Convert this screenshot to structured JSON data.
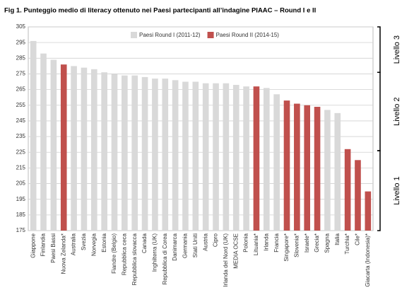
{
  "chart_data": {
    "type": "bar",
    "title": "Fig 1. Punteggio medio di literacy ottenuto nei Paesi partecipanti all’indagine PIAAC – Round I e II",
    "categories": [
      "Giappone",
      "Finlandia",
      "Paesi Bassi",
      "Nuova Zelanda*",
      "Australia",
      "Svezia",
      "Norvegia",
      "Estonia",
      "Fiandre (Belgio)",
      "Repubblica ceca",
      "Repubblica slovacca",
      "Canada",
      "Inghilterra (UK)",
      "Repubblica di Corea",
      "Danimarca",
      "Germania",
      "Stati Uniti",
      "Austria",
      "Cipro",
      "Irlanda del Nord (UK)",
      "MEDIA OCSE",
      "Polonia",
      "Lituania*",
      "Irlanda",
      "Francia",
      "Singapore*",
      "Slovenia*",
      "Israele*",
      "Grecia*",
      "Spagna",
      "Italia",
      "Turchia*",
      "Cile*",
      "Giacarta (Indonesia)*"
    ],
    "series": [
      {
        "name": "Paesi Round I (2011-12)",
        "color": "#d9d9d9",
        "values": [
          296,
          288,
          284,
          null,
          280,
          279,
          278,
          276,
          275,
          274,
          274,
          273,
          272,
          272,
          271,
          270,
          270,
          269,
          269,
          269,
          268,
          267,
          null,
          266,
          262,
          null,
          null,
          null,
          null,
          252,
          250,
          null,
          null,
          null
        ]
      },
      {
        "name": "Paesi Round II (2014-15)",
        "color": "#c0504d",
        "values": [
          null,
          null,
          null,
          281,
          null,
          null,
          null,
          null,
          null,
          null,
          null,
          null,
          null,
          null,
          null,
          null,
          null,
          null,
          null,
          null,
          null,
          null,
          267,
          null,
          null,
          258,
          256,
          255,
          254,
          null,
          null,
          227,
          220,
          200
        ]
      }
    ],
    "ylim": [
      175,
      305
    ],
    "yticks": [
      175,
      185,
      195,
      205,
      215,
      225,
      235,
      245,
      255,
      265,
      275,
      285,
      295,
      305
    ],
    "grid": true,
    "levels": [
      {
        "label": "Livello 3",
        "from": 276,
        "to": 305
      },
      {
        "label": "Livello 2",
        "from": 226,
        "to": 276
      },
      {
        "label": "Livello 1",
        "from": 175,
        "to": 226
      }
    ]
  }
}
